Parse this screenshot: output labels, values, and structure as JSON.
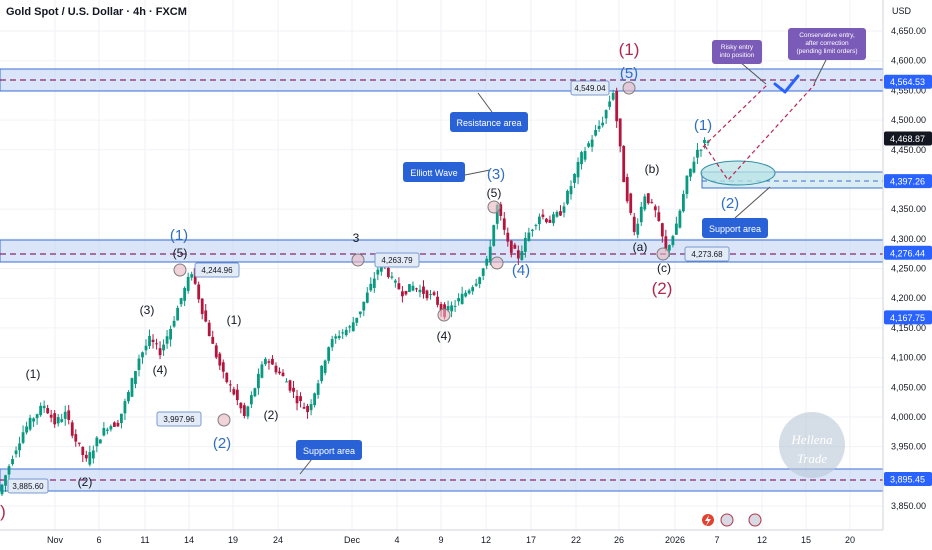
{
  "header": {
    "title": "Gold Spot / U.S. Dollar · 4h · FXCM",
    "currency": "USD"
  },
  "watermark": {
    "line1": "Hellena",
    "line2": "Trade"
  },
  "chart_data": {
    "type": "candlestick",
    "ylim": [
      3820,
      4655
    ],
    "y_ticks": [
      "4,650.00",
      "4,600.00",
      "4,550.00",
      "4,500.00",
      "4,450.00",
      "4,350.00",
      "4,300.00",
      "4,250.00",
      "4,200.00",
      "4,150.00",
      "4,100.00",
      "4,050.00",
      "4,000.00",
      "3,950.00",
      "3,850.00"
    ],
    "y_tick_values": [
      4650,
      4600,
      4550,
      4500,
      4450,
      4350,
      4300,
      4250,
      4200,
      4150,
      4100,
      4050,
      4000,
      3950,
      3850
    ],
    "x_ticks": [
      "Nov",
      "6",
      "11",
      "14",
      "19",
      "24",
      "Dec",
      "4",
      "9",
      "12",
      "17",
      "22",
      "26",
      "2026",
      "7",
      "12",
      "15",
      "20"
    ],
    "price_tags": [
      {
        "label": "4,564.53",
        "price": 4564.53,
        "color": "#2962ff"
      },
      {
        "label": "4,468.87",
        "price": 4468.87,
        "color": "#131722"
      },
      {
        "label": "4,397.26",
        "price": 4397.26,
        "color": "#2962ff"
      },
      {
        "label": "4,276.44",
        "price": 4276.44,
        "color": "#2962ff"
      },
      {
        "label": "4,167.75",
        "price": 4167.75,
        "color": "#2962ff"
      },
      {
        "label": "3,895.45",
        "price": 3895.45,
        "color": "#2962ff"
      }
    ],
    "zones": [
      {
        "name": "resistance",
        "from": 4545,
        "to": 4582
      },
      {
        "name": "support-upper",
        "from": 4258,
        "to": 4294
      },
      {
        "name": "support-lower",
        "from": 3877,
        "to": 3914
      }
    ],
    "level_lines": [
      4564.53,
      4276.44,
      3895.45
    ],
    "price_path": [
      [
        0,
        3885
      ],
      [
        1,
        3935
      ],
      [
        2,
        3975
      ],
      [
        3,
        4000
      ],
      [
        4,
        4020
      ],
      [
        5,
        3990
      ],
      [
        6,
        4005
      ],
      [
        7,
        3960
      ],
      [
        8,
        3925
      ],
      [
        9,
        3960
      ],
      [
        10,
        3985
      ],
      [
        11,
        3990
      ],
      [
        12,
        4040
      ],
      [
        13,
        4100
      ],
      [
        14,
        4130
      ],
      [
        15,
        4110
      ],
      [
        16,
        4150
      ],
      [
        17,
        4200
      ],
      [
        18,
        4245
      ],
      [
        19,
        4180
      ],
      [
        20,
        4120
      ],
      [
        21,
        4070
      ],
      [
        22,
        4040
      ],
      [
        23,
        4000
      ],
      [
        24,
        4050
      ],
      [
        25,
        4100
      ],
      [
        26,
        4080
      ],
      [
        27,
        4060
      ],
      [
        28,
        4030
      ],
      [
        29,
        4010
      ],
      [
        30,
        4060
      ],
      [
        31,
        4120
      ],
      [
        32,
        4140
      ],
      [
        33,
        4150
      ],
      [
        34,
        4180
      ],
      [
        35,
        4220
      ],
      [
        36,
        4264
      ],
      [
        37,
        4230
      ],
      [
        38,
        4210
      ],
      [
        39,
        4220
      ],
      [
        40,
        4210
      ],
      [
        41,
        4200
      ],
      [
        42,
        4175
      ],
      [
        43,
        4190
      ],
      [
        44,
        4210
      ],
      [
        45,
        4230
      ],
      [
        46,
        4260
      ],
      [
        47,
        4355
      ],
      [
        48,
        4290
      ],
      [
        49,
        4270
      ],
      [
        50,
        4310
      ],
      [
        51,
        4340
      ],
      [
        52,
        4330
      ],
      [
        53,
        4345
      ],
      [
        54,
        4390
      ],
      [
        55,
        4440
      ],
      [
        56,
        4470
      ],
      [
        57,
        4500
      ],
      [
        58,
        4549
      ],
      [
        59,
        4400
      ],
      [
        60,
        4310
      ],
      [
        61,
        4375
      ],
      [
        62,
        4345
      ],
      [
        63,
        4280
      ],
      [
        64,
        4320
      ],
      [
        65,
        4400
      ],
      [
        66,
        4450
      ],
      [
        67,
        4468
      ]
    ],
    "open_price": 3840,
    "projection": {
      "wave2_low": 4397.26,
      "target": 4564.53
    }
  },
  "annotations": {
    "resistance_label": "Resistance area",
    "elliott_label": "Elliott Wave",
    "support_label_upper": "Support area",
    "support_label_lower": "Support area",
    "risky_entry": "Risky entry into position",
    "conservative_entry": "Conservative entry, after correction (pending limit orders)",
    "price_label_4549": "4,549.04",
    "price_label_4263": "4,263.79",
    "price_label_4244": "4,244.96",
    "price_label_3997": "3,997.96",
    "price_label_3885": "3,885.60",
    "price_label_4273": "4,273.68"
  },
  "waves": {
    "big1_top": "(1)",
    "big5_top": "(5)",
    "w1_right": "(1)",
    "w2_right": "(2)",
    "a": "(a)",
    "b": "(b)",
    "c": "(c)",
    "big2": "(2)",
    "w3_blue": "(3)",
    "w5_black_mid": "(5)",
    "w4_blue": "(4)",
    "w3_black": "3",
    "w4_black": "(4)",
    "left1": "(1)",
    "left2": "(2)",
    "left3": "(3)",
    "left4": "(4)",
    "left5": "(5)",
    "left_blue1": "(1)",
    "left_blue2": "(2)",
    "mid1": "(1)",
    "mid2": "(2)",
    "red_left": ")"
  }
}
